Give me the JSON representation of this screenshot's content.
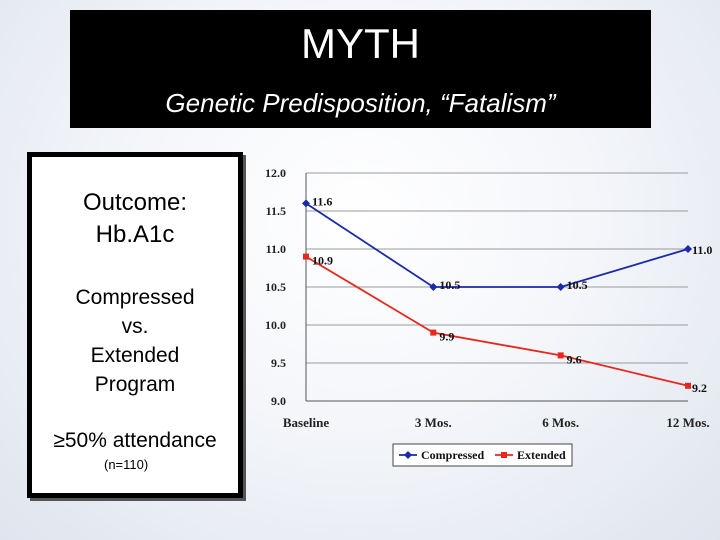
{
  "header": {
    "title": "MYTH",
    "subtitle": "Genetic Predisposition, “Fatalism”"
  },
  "panel": {
    "outcome_line1": "Outcome:",
    "outcome_line2": "Hb.A1c",
    "program_line1": "Compressed",
    "program_line2": "vs.",
    "program_line3": "Extended",
    "program_line4": "Program",
    "attendance": "≥50% attendance",
    "n": "(n=110)"
  },
  "colors": {
    "compressed": "#1a2aa8",
    "extended": "#e8261c",
    "grid": "#9a9a9a"
  },
  "chart_data": {
    "type": "line",
    "title": "",
    "xlabel": "",
    "ylabel": "",
    "categories": [
      "Baseline",
      "3 Mos.",
      "6 Mos.",
      "12 Mos."
    ],
    "ylim": [
      9.0,
      12.0
    ],
    "yticks": [
      "9.0",
      "9.5",
      "10.0",
      "10.5",
      "11.0",
      "11.5",
      "12.0"
    ],
    "grid": true,
    "legend_position": "bottom",
    "series": [
      {
        "name": "Compressed",
        "values": [
          11.6,
          10.5,
          10.5,
          11.0
        ],
        "labels": [
          "11.6",
          "10.5",
          "10.5",
          "11.0"
        ],
        "marker": "diamond"
      },
      {
        "name": "Extended",
        "values": [
          10.9,
          9.9,
          9.6,
          9.2
        ],
        "labels": [
          "10.9",
          "9.9",
          "9.6",
          "9.2"
        ],
        "marker": "square"
      }
    ]
  }
}
